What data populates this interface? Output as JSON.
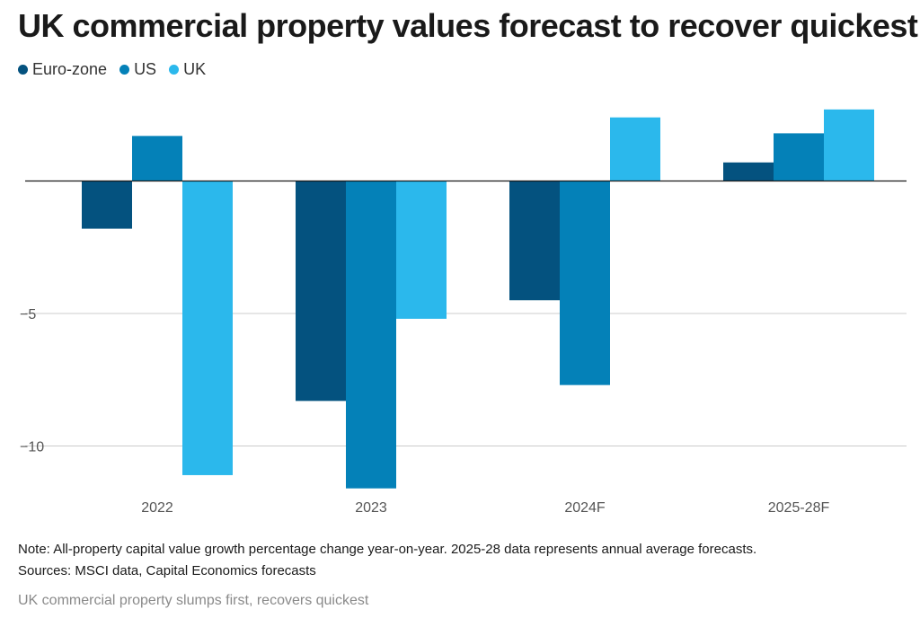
{
  "title": "UK commercial property values forecast to recover quickest",
  "legend": [
    {
      "label": "Euro-zone",
      "color": "#04527f"
    },
    {
      "label": "US",
      "color": "#0481b8"
    },
    {
      "label": "UK",
      "color": "#2bb8ec"
    }
  ],
  "chart_data": {
    "type": "bar",
    "categories": [
      "2022",
      "2023",
      "2024F",
      "2025-28F"
    ],
    "series": [
      {
        "name": "Euro-zone",
        "color": "#04527f",
        "values": [
          -1.8,
          -8.3,
          -4.5,
          0.7
        ]
      },
      {
        "name": "US",
        "color": "#0481b8",
        "values": [
          1.7,
          -11.6,
          -7.7,
          1.8
        ]
      },
      {
        "name": "UK",
        "color": "#2bb8ec",
        "values": [
          -11.1,
          -5.2,
          2.4,
          2.7
        ]
      }
    ],
    "yticks": [
      {
        "value": -5,
        "label": "−5"
      },
      {
        "value": -10,
        "label": "−10"
      }
    ],
    "ylim": [
      -12.2,
      3.5
    ],
    "grid": true,
    "legend_position": "top-left"
  },
  "note": "Note: All-property capital value growth percentage change year-on-year. 2025-28 data represents annual average forecasts.",
  "sources": "Sources: MSCI data, Capital Economics forecasts",
  "caption": "UK commercial property slumps first, recovers quickest"
}
